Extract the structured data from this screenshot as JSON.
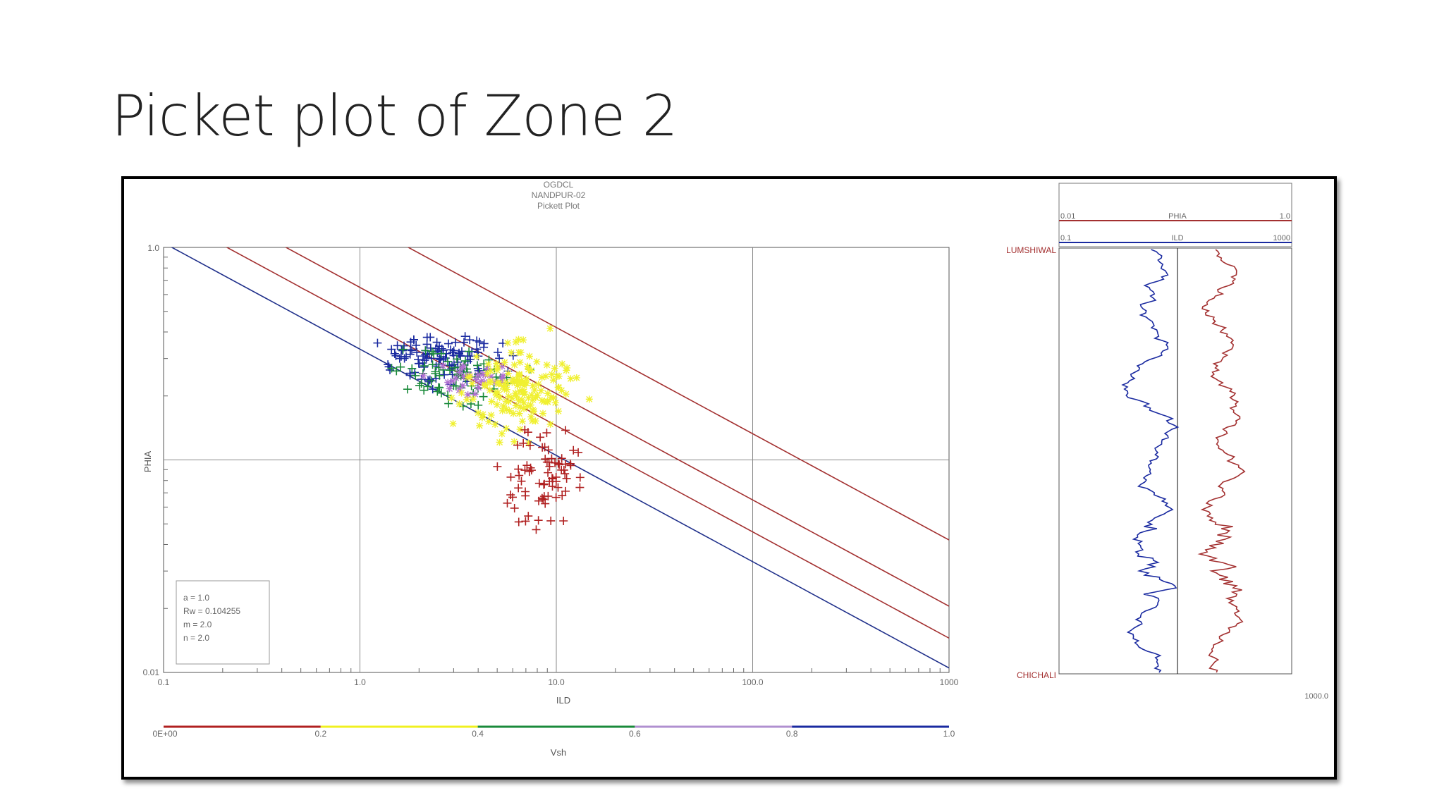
{
  "slide": {
    "title": "Picket plot of Zone 2"
  },
  "chart_data": [
    {
      "type": "scatter",
      "header": [
        "OGDCL",
        "NANDPUR-02",
        "Pickett Plot"
      ],
      "xlabel": "ILD",
      "ylabel": "PHIA",
      "x_scale": "log",
      "y_scale": "log",
      "xlim": [
        0.1,
        1000
      ],
      "ylim": [
        0.01,
        1.0
      ],
      "x_tick_labels": [
        "0.1",
        "1.0",
        "10.0",
        "100.0",
        "1000"
      ],
      "y_tick_labels": [
        "0.01",
        "1.0"
      ],
      "grid": true,
      "parameters": [
        "a = 1.0",
        "Rw = 0.104255",
        "m = 2.0",
        "n = 2.0"
      ],
      "sw_lines": [
        {
          "phi_at_1000": 0.0105,
          "color": "#1f2f8a"
        },
        {
          "phi_at_1000": 0.0145,
          "color": "#a33030"
        },
        {
          "phi_at_1000": 0.0205,
          "color": "#a33030"
        },
        {
          "phi_at_1000": 0.042,
          "color": "#a33030"
        }
      ],
      "color_scale": {
        "variable": "Vsh",
        "tick_labels": [
          "0E+00",
          "0.2",
          "0.4",
          "0.6",
          "0.8",
          "1.0"
        ],
        "colors": [
          "#b02020",
          "#f0f020",
          "#1a8a3a",
          "#b090d0",
          "#1a2aa0"
        ]
      },
      "clusters": [
        {
          "class": "blue",
          "symbol": "+",
          "color": "#1a2aa0",
          "center": [
            2.6,
            0.3
          ],
          "spread": [
            0.18,
            0.07
          ],
          "count": 110
        },
        {
          "class": "green",
          "symbol": "+",
          "color": "#1a8a3a",
          "center": [
            3.0,
            0.245
          ],
          "spread": [
            0.2,
            0.08
          ],
          "count": 70
        },
        {
          "class": "purple",
          "symbol": "*",
          "color": "#b070d0",
          "center": [
            3.5,
            0.24
          ],
          "spread": [
            0.16,
            0.06
          ],
          "count": 30
        },
        {
          "class": "yellow",
          "symbol": "*",
          "color": "#f0f030",
          "center": [
            6.5,
            0.21
          ],
          "spread": [
            0.2,
            0.15
          ],
          "count": 150
        },
        {
          "class": "red",
          "symbol": "+",
          "color": "#b02020",
          "center": [
            8.5,
            0.085
          ],
          "spread": [
            0.12,
            0.18
          ],
          "count": 75
        }
      ]
    },
    {
      "type": "line",
      "track": "depth log",
      "curves": [
        {
          "name": "PHIA",
          "scale_left": "0.01",
          "scale_right": "1.0",
          "color": "#a33030"
        },
        {
          "name": "ILD",
          "scale_left": "0.1",
          "scale_right": "1000",
          "color": "#1a2aa0"
        }
      ],
      "top_marker": "LUMSHIWAL",
      "bottom_marker": "CHICHALI",
      "bottom_value": "1000.0"
    }
  ]
}
